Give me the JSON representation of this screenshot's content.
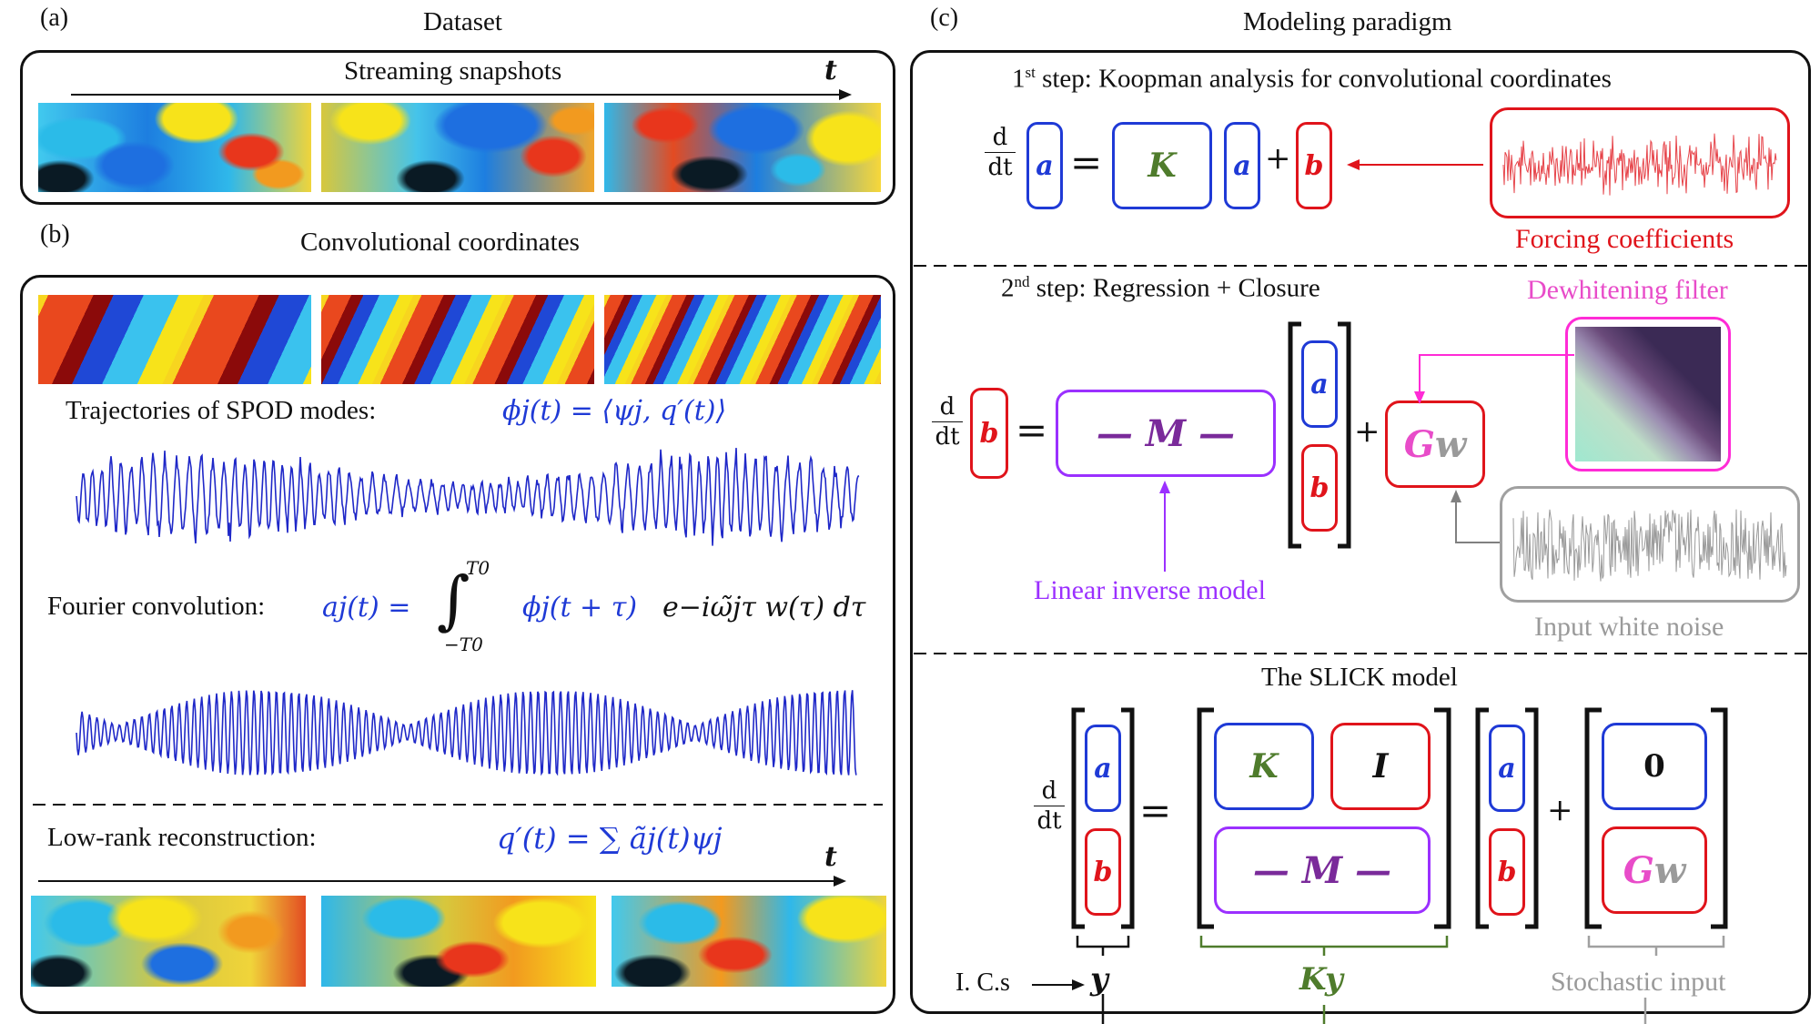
{
  "panel_a": {
    "tag": "(a)",
    "title": "Dataset",
    "streaming_label": "Streaming snapshots",
    "time_symbol": "t"
  },
  "panel_b": {
    "tag": "(b)",
    "title": "Convolutional coordinates",
    "trajectories_label": "Trajectories of SPOD modes:",
    "trajectories_eq": "ϕj(t) = ⟨ψj, q′(t)⟩",
    "fourier_label": "Fourier convolution:",
    "fourier_eq_lhs": "aj(t) =",
    "fourier_eq_int": "∫",
    "fourier_eq_upper": "T0",
    "fourier_eq_lower": "−T0",
    "fourier_eq_blue": "ϕj(t + τ)",
    "fourier_eq_rest": "e−iω̃jτ w(τ) dτ",
    "lowrank_label": "Low-rank reconstruction:",
    "lowrank_eq": "q′(t) = ∑ ãj(t)ψj",
    "time_symbol": "t"
  },
  "panel_c": {
    "tag": "(c)",
    "title": "Modeling paradigm",
    "step1": {
      "title_pre": "1",
      "title_sup": "st",
      "title_post": " step: Koopman analysis for convolutional coordinates",
      "d": "d",
      "dt": "dt",
      "a": "a",
      "K": "K",
      "plus": "+",
      "b": "b",
      "equals": "=",
      "forcing_label": "Forcing coefficients"
    },
    "step2": {
      "title_pre": "2",
      "title_sup": "nd",
      "title_post": " step: Regression + Closure",
      "dewhitening_label": "Dewhitening filter",
      "d": "d",
      "dt": "dt",
      "b": "b",
      "M": "— M —",
      "a": "a",
      "plus": "+",
      "Gw": "Gw",
      "equals": "=",
      "lim_label": "Linear inverse model",
      "noise_label": "Input white noise"
    },
    "step3": {
      "title": "The SLICK model",
      "d": "d",
      "dt": "dt",
      "a": "a",
      "b": "b",
      "K": "K",
      "I": "I",
      "M": "— M —",
      "zero": "0",
      "Gw": "Gw",
      "equals": "=",
      "plus": "+",
      "ic_label": "I. C.s",
      "y_label": "y",
      "Ky_label": "Ky",
      "stochastic_label": "Stochastic input"
    }
  },
  "colors": {
    "blue": "#1f3ad6",
    "red": "#e0141b",
    "green": "#4f7c2c",
    "purple": "#9b30ff",
    "magenta": "#ff2bd6",
    "grey": "#a0a0a0"
  }
}
